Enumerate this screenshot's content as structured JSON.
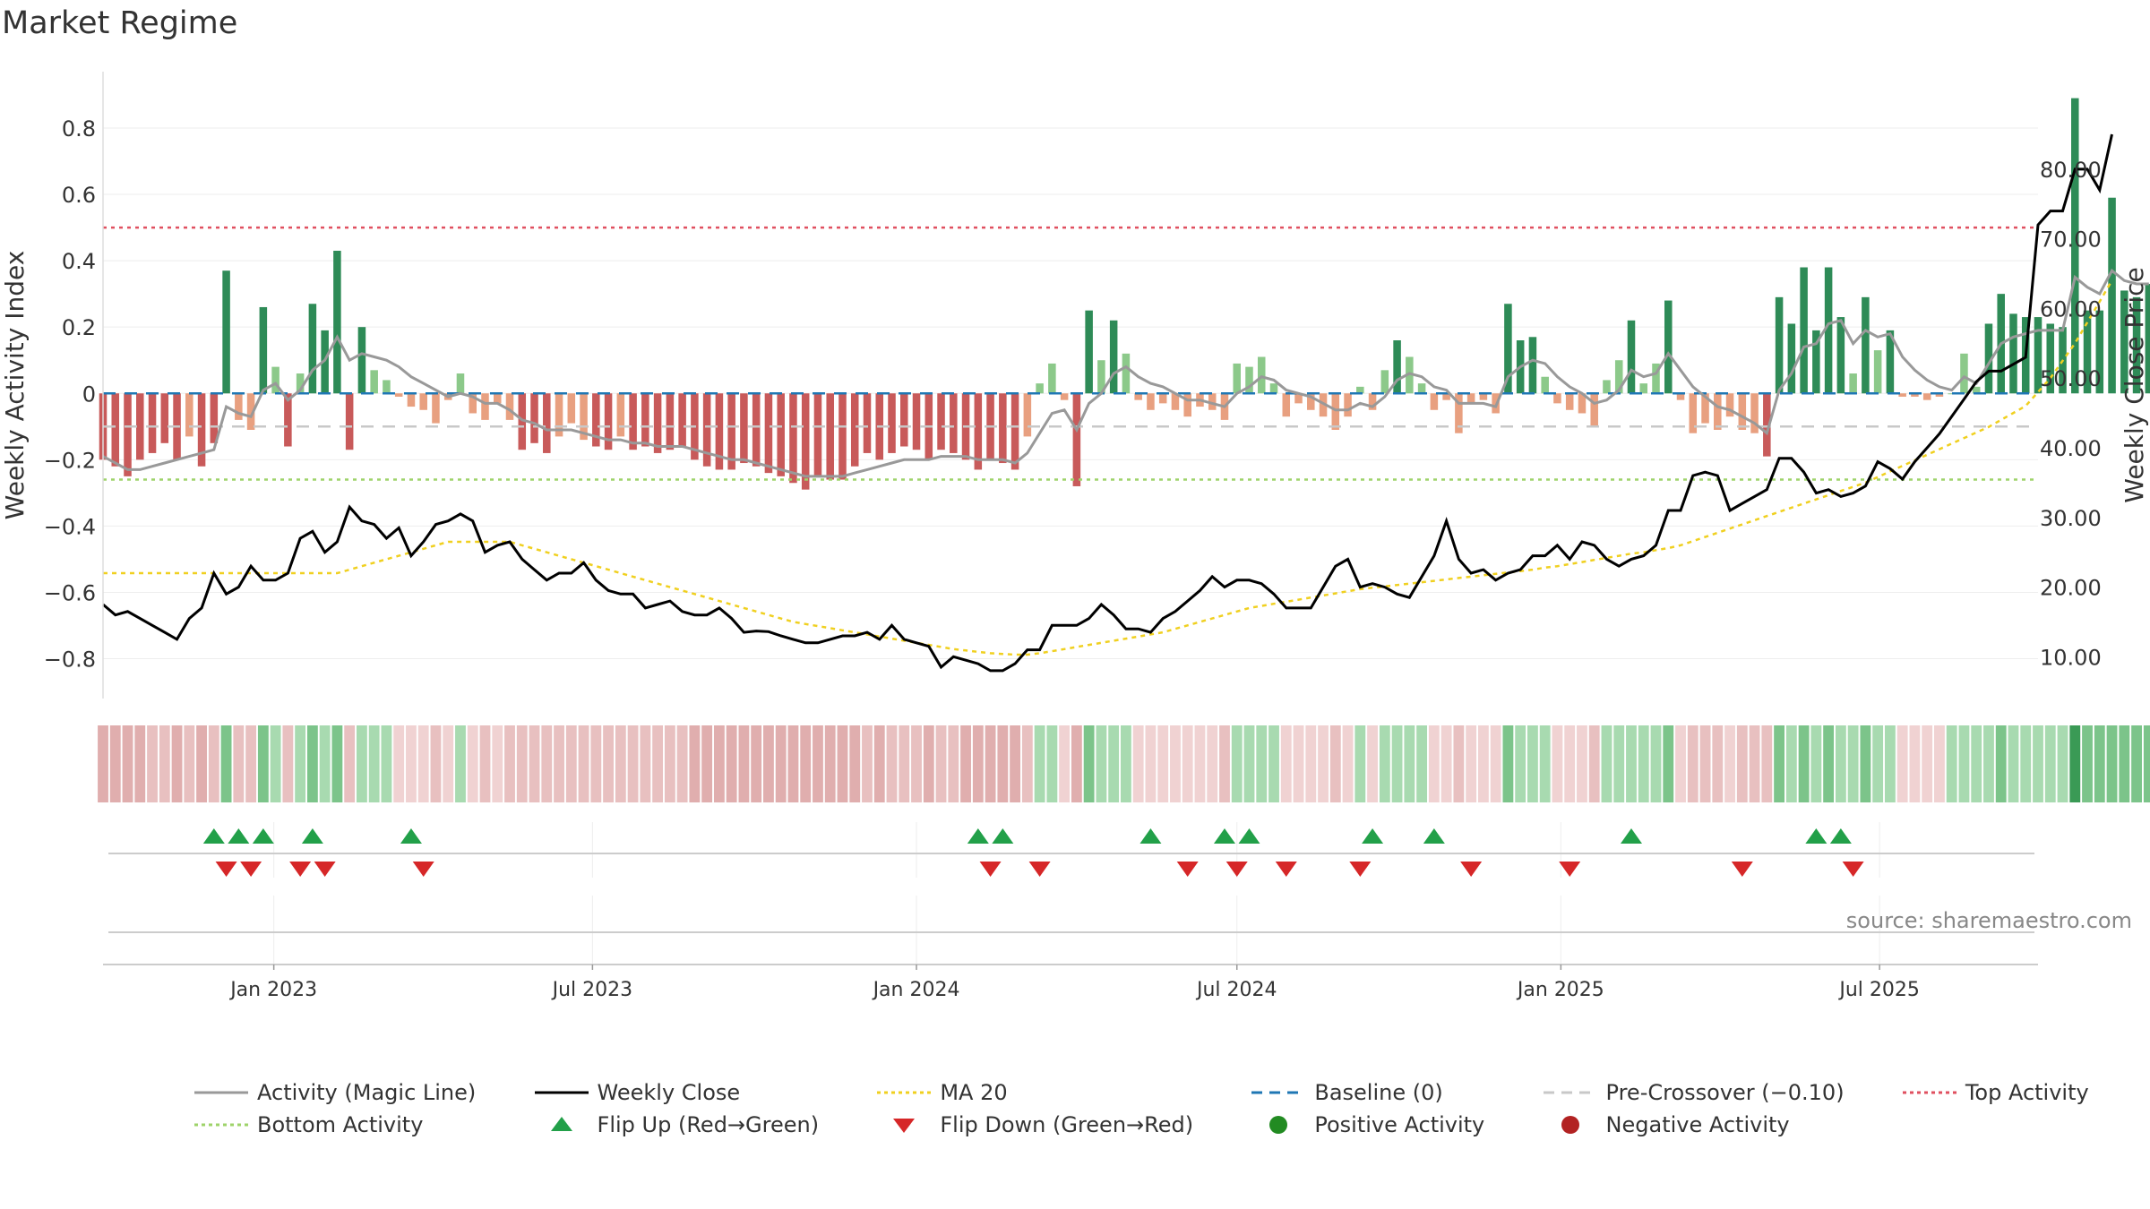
{
  "title": "Market Regime",
  "source": "source: sharemaestro.com",
  "legend": [
    {
      "label": "Activity (Magic Line)",
      "kind": "line",
      "color": "#999999",
      "dash": ""
    },
    {
      "label": "Weekly Close",
      "kind": "line",
      "color": "#000000",
      "dash": ""
    },
    {
      "label": "MA 20",
      "kind": "line",
      "color": "#f0d020",
      "dash": "4,4"
    },
    {
      "label": "Baseline (0)",
      "kind": "line",
      "color": "#1f77b4",
      "dash": "12,8"
    },
    {
      "label": "Pre-Crossover (−0.10)",
      "kind": "line",
      "color": "#c8c8c8",
      "dash": "12,8"
    },
    {
      "label": "Top Activity",
      "kind": "line",
      "color": "#e05060",
      "dash": "4,4"
    },
    {
      "label": "Bottom Activity",
      "kind": "line",
      "color": "#9ed36a",
      "dash": "4,4"
    },
    {
      "label": "Flip Up (Red→Green)",
      "kind": "up",
      "color": "#22a049"
    },
    {
      "label": "Flip Down (Green→Red)",
      "kind": "down",
      "color": "#d62728"
    },
    {
      "label": "Positive Activity",
      "kind": "dot",
      "color": "#228b22"
    },
    {
      "label": "Negative Activity",
      "kind": "dot",
      "color": "#b22222"
    }
  ],
  "chart_data": {
    "type": "bar",
    "title": "Market Regime",
    "ylabel": "Weekly Activity Index",
    "y2label": "Weekly Close Price",
    "ylim": [
      -0.92,
      0.97
    ],
    "y2lim": [
      4.0,
      94.0
    ],
    "yticks": [
      0.8,
      0.6,
      0.4,
      0.2,
      0,
      -0.2,
      -0.4,
      -0.6,
      -0.8
    ],
    "ytick_labels": [
      "0.8",
      "0.6",
      "0.4",
      "0.2",
      "0",
      "−0.2",
      "−0.4",
      "−0.6",
      "−0.8"
    ],
    "y2ticks": [
      80,
      70,
      60,
      50,
      40,
      30,
      20,
      10
    ],
    "y2tick_labels": [
      "80.00",
      "70.00",
      "60.00",
      "50.00",
      "40.00",
      "30.00",
      "20.00",
      "10.00"
    ],
    "x_range": [
      "2022-09-26",
      "2025-09-29"
    ],
    "xticks": [
      "2023-01-01",
      "2023-07-01",
      "2024-01-01",
      "2024-07-01",
      "2025-01-01",
      "2025-07-01"
    ],
    "xtick_labels": [
      "Jan 2023",
      "Jul 2023",
      "Jan 2024",
      "Jul 2024",
      "Jan 2025",
      "Jul 2025"
    ],
    "reference_lines": {
      "top": 0.5,
      "bottom": -0.26,
      "baseline": 0,
      "pre_crossover": -0.1
    },
    "colors": {
      "strong_pos": "#2e8b57",
      "weak_pos": "#8cc98a",
      "strong_neg": "#c85a5a",
      "weak_neg": "#e8a080",
      "close": "#000000",
      "ma": "#f0d020",
      "magic": "#999999"
    },
    "weekly_activity": [
      -0.2,
      -0.22,
      -0.25,
      -0.2,
      -0.18,
      -0.15,
      -0.2,
      -0.13,
      -0.22,
      -0.15,
      0.37,
      -0.08,
      -0.11,
      0.26,
      0.08,
      -0.16,
      0.06,
      0.27,
      0.19,
      0.43,
      -0.17,
      0.2,
      0.07,
      0.04,
      -0.01,
      -0.04,
      -0.05,
      -0.09,
      -0.02,
      0.06,
      -0.06,
      -0.08,
      -0.03,
      -0.08,
      -0.17,
      -0.15,
      -0.18,
      -0.13,
      -0.09,
      -0.14,
      -0.16,
      -0.17,
      -0.13,
      -0.17,
      -0.16,
      -0.18,
      -0.17,
      -0.16,
      -0.2,
      -0.22,
      -0.23,
      -0.23,
      -0.21,
      -0.22,
      -0.24,
      -0.25,
      -0.27,
      -0.29,
      -0.25,
      -0.26,
      -0.26,
      -0.22,
      -0.18,
      -0.2,
      -0.18,
      -0.16,
      -0.17,
      -0.2,
      -0.17,
      -0.18,
      -0.2,
      -0.23,
      -0.2,
      -0.21,
      -0.23,
      -0.13,
      0.03,
      0.09,
      -0.02,
      -0.28,
      0.25,
      0.1,
      0.22,
      0.12,
      -0.02,
      -0.05,
      -0.03,
      -0.05,
      -0.07,
      -0.04,
      -0.05,
      -0.08,
      0.09,
      0.08,
      0.11,
      0.03,
      -0.07,
      -0.03,
      -0.05,
      -0.07,
      -0.11,
      -0.07,
      0.02,
      -0.05,
      0.07,
      0.16,
      0.11,
      0.03,
      -0.05,
      -0.02,
      -0.12,
      -0.03,
      -0.02,
      -0.06,
      0.27,
      0.16,
      0.17,
      0.05,
      -0.03,
      -0.05,
      -0.06,
      -0.1,
      0.04,
      0.1,
      0.22,
      0.03,
      0.09,
      0.28,
      -0.02,
      -0.12,
      -0.09,
      -0.11,
      -0.07,
      -0.11,
      -0.12,
      -0.19,
      0.29,
      0.21,
      0.38,
      0.19,
      0.38,
      0.23,
      0.06,
      0.29,
      0.13,
      0.19,
      -0.01,
      -0.01,
      -0.02,
      -0.01,
      0.0,
      0.12,
      0.02,
      0.21,
      0.3,
      0.24,
      0.23,
      0.23,
      0.21,
      0.2,
      0.89,
      0.25,
      0.25,
      0.59,
      0.31,
      0.29,
      0.33
    ],
    "magic_line": [
      -0.19,
      -0.21,
      -0.23,
      -0.23,
      -0.22,
      -0.21,
      -0.2,
      -0.19,
      -0.18,
      -0.17,
      -0.04,
      -0.06,
      -0.07,
      0.01,
      0.03,
      -0.02,
      0.01,
      0.07,
      0.1,
      0.17,
      0.1,
      0.12,
      0.11,
      0.1,
      0.08,
      0.05,
      0.03,
      0.01,
      -0.01,
      0.0,
      -0.01,
      -0.03,
      -0.03,
      -0.05,
      -0.08,
      -0.09,
      -0.11,
      -0.11,
      -0.11,
      -0.12,
      -0.13,
      -0.14,
      -0.14,
      -0.15,
      -0.15,
      -0.16,
      -0.16,
      -0.16,
      -0.17,
      -0.18,
      -0.19,
      -0.2,
      -0.2,
      -0.21,
      -0.22,
      -0.23,
      -0.24,
      -0.25,
      -0.25,
      -0.25,
      -0.25,
      -0.24,
      -0.23,
      -0.22,
      -0.21,
      -0.2,
      -0.2,
      -0.2,
      -0.19,
      -0.19,
      -0.19,
      -0.2,
      -0.2,
      -0.2,
      -0.21,
      -0.18,
      -0.12,
      -0.06,
      -0.05,
      -0.11,
      -0.03,
      0.0,
      0.06,
      0.08,
      0.05,
      0.03,
      0.02,
      0.0,
      -0.02,
      -0.02,
      -0.03,
      -0.04,
      0.0,
      0.02,
      0.05,
      0.04,
      0.01,
      0.0,
      -0.01,
      -0.03,
      -0.05,
      -0.05,
      -0.03,
      -0.04,
      -0.01,
      0.04,
      0.06,
      0.05,
      0.02,
      0.01,
      -0.03,
      -0.03,
      -0.03,
      -0.04,
      0.05,
      0.08,
      0.1,
      0.09,
      0.05,
      0.02,
      0.0,
      -0.03,
      -0.02,
      0.01,
      0.07,
      0.05,
      0.06,
      0.12,
      0.07,
      0.02,
      -0.01,
      -0.04,
      -0.05,
      -0.07,
      -0.09,
      -0.12,
      0.01,
      0.06,
      0.14,
      0.15,
      0.21,
      0.22,
      0.15,
      0.19,
      0.17,
      0.18,
      0.11,
      0.07,
      0.04,
      0.02,
      0.01,
      0.05,
      0.03,
      0.09,
      0.15,
      0.17,
      0.18,
      0.19,
      0.19,
      0.19,
      0.35,
      0.32,
      0.3,
      0.37,
      0.34,
      0.33,
      0.33
    ],
    "weekly_close": [
      17.5,
      16.0,
      16.5,
      15.5,
      14.5,
      13.5,
      12.5,
      15.5,
      17.0,
      22.0,
      19.0,
      20.0,
      23.0,
      21.0,
      21.0,
      22.0,
      27.0,
      28.0,
      25.0,
      26.5,
      31.5,
      29.5,
      29.0,
      27.0,
      28.5,
      24.5,
      26.5,
      29.0,
      29.5,
      30.5,
      29.5,
      25.0,
      26.0,
      26.5,
      24.0,
      22.5,
      21.0,
      22.0,
      22.0,
      23.5,
      21.0,
      19.5,
      19.0,
      19.0,
      17.0,
      17.5,
      18.0,
      16.5,
      16.0,
      16.0,
      17.0,
      15.5,
      13.5,
      13.7,
      13.6,
      13.0,
      12.5,
      12.0,
      12.0,
      12.5,
      13.0,
      13.0,
      13.5,
      12.5,
      14.5,
      12.5,
      12.0,
      11.5,
      8.5,
      10.0,
      9.5,
      9.0,
      8.0,
      8.0,
      9.0,
      11.0,
      11.0,
      14.5,
      14.5,
      14.5,
      15.5,
      17.5,
      16.0,
      14.0,
      14.0,
      13.5,
      15.5,
      16.5,
      18.0,
      19.5,
      21.5,
      20.0,
      21.0,
      21.0,
      20.5,
      19.0,
      17.0,
      17.0,
      17.0,
      20.0,
      23.0,
      24.0,
      20.0,
      20.5,
      20.0,
      19.0,
      18.5,
      21.5,
      24.5,
      29.5,
      24.0,
      22.0,
      22.5,
      21.0,
      22.0,
      22.5,
      24.5,
      24.5,
      26.0,
      24.0,
      26.5,
      26.0,
      24.0,
      23.0,
      24.0,
      24.5,
      26.0,
      31.0,
      31.0,
      36.0,
      36.5,
      36.0,
      31.0,
      32.0,
      33.0,
      34.0,
      38.5,
      38.5,
      36.5,
      33.5,
      34.0,
      33.0,
      33.5,
      34.5,
      38.0,
      37.0,
      35.5,
      38.0,
      40.0,
      42.0,
      44.5,
      47.0,
      49.5,
      51.0,
      51.0,
      52.0,
      53.0,
      72.0,
      74.0,
      74.0,
      80.0,
      80.0,
      77.0,
      85.0
    ],
    "ma20": [
      22.0,
      22.0,
      22.0,
      22.0,
      22.0,
      22.0,
      22.0,
      22.0,
      22.0,
      22.0,
      22.0,
      22.0,
      22.0,
      22.0,
      22.0,
      22.0,
      22.0,
      22.0,
      22.0,
      22.0,
      22.5,
      23.0,
      23.5,
      24.0,
      24.5,
      25.0,
      25.5,
      26.0,
      26.5,
      26.5,
      26.5,
      26.5,
      26.5,
      26.5,
      26.0,
      25.5,
      25.0,
      24.5,
      24.0,
      23.5,
      23.0,
      22.5,
      22.0,
      21.5,
      21.0,
      20.5,
      20.0,
      19.5,
      19.0,
      18.5,
      18.0,
      17.5,
      17.0,
      16.5,
      16.0,
      15.5,
      15.0,
      14.7,
      14.4,
      14.1,
      13.8,
      13.5,
      13.2,
      12.9,
      12.6,
      12.3,
      12.0,
      11.7,
      11.4,
      11.1,
      10.9,
      10.7,
      10.5,
      10.4,
      10.3,
      10.3,
      10.5,
      10.8,
      11.1,
      11.4,
      11.7,
      12.0,
      12.3,
      12.6,
      12.9,
      13.2,
      13.5,
      14.0,
      14.5,
      15.0,
      15.5,
      16.0,
      16.5,
      17.0,
      17.3,
      17.6,
      17.9,
      18.2,
      18.5,
      18.8,
      19.1,
      19.4,
      19.7,
      19.9,
      20.1,
      20.3,
      20.5,
      20.7,
      20.9,
      21.1,
      21.3,
      21.5,
      21.7,
      21.9,
      22.1,
      22.3,
      22.5,
      22.8,
      23.0,
      23.3,
      23.6,
      23.9,
      24.2,
      24.5,
      24.8,
      25.0,
      25.3,
      25.6,
      26.0,
      26.6,
      27.2,
      27.8,
      28.4,
      29.0,
      29.6,
      30.2,
      30.8,
      31.4,
      32.0,
      32.6,
      33.2,
      33.8,
      34.4,
      35.0,
      35.8,
      36.6,
      37.4,
      38.2,
      39.0,
      39.8,
      40.6,
      41.4,
      42.2,
      43.0,
      44.0,
      45.0,
      46.0,
      48.0,
      50.0,
      52.5,
      55.0,
      58.0,
      61.0,
      64.0
    ],
    "flip_up": [
      "2022-11-28",
      "2022-12-12",
      "2022-12-26",
      "2023-01-23",
      "2023-03-20",
      "2024-02-05",
      "2024-02-19",
      "2024-05-13",
      "2024-06-24",
      "2024-07-08",
      "2024-09-16",
      "2024-10-21",
      "2025-02-10",
      "2025-05-26",
      "2025-06-09"
    ],
    "flip_down": [
      "2022-12-05",
      "2022-12-19",
      "2023-01-16",
      "2023-01-30",
      "2023-03-27",
      "2024-02-12",
      "2024-03-11",
      "2024-06-03",
      "2024-07-01",
      "2024-07-29",
      "2024-09-09",
      "2024-11-11",
      "2025-01-06",
      "2025-04-14",
      "2025-06-16"
    ]
  }
}
